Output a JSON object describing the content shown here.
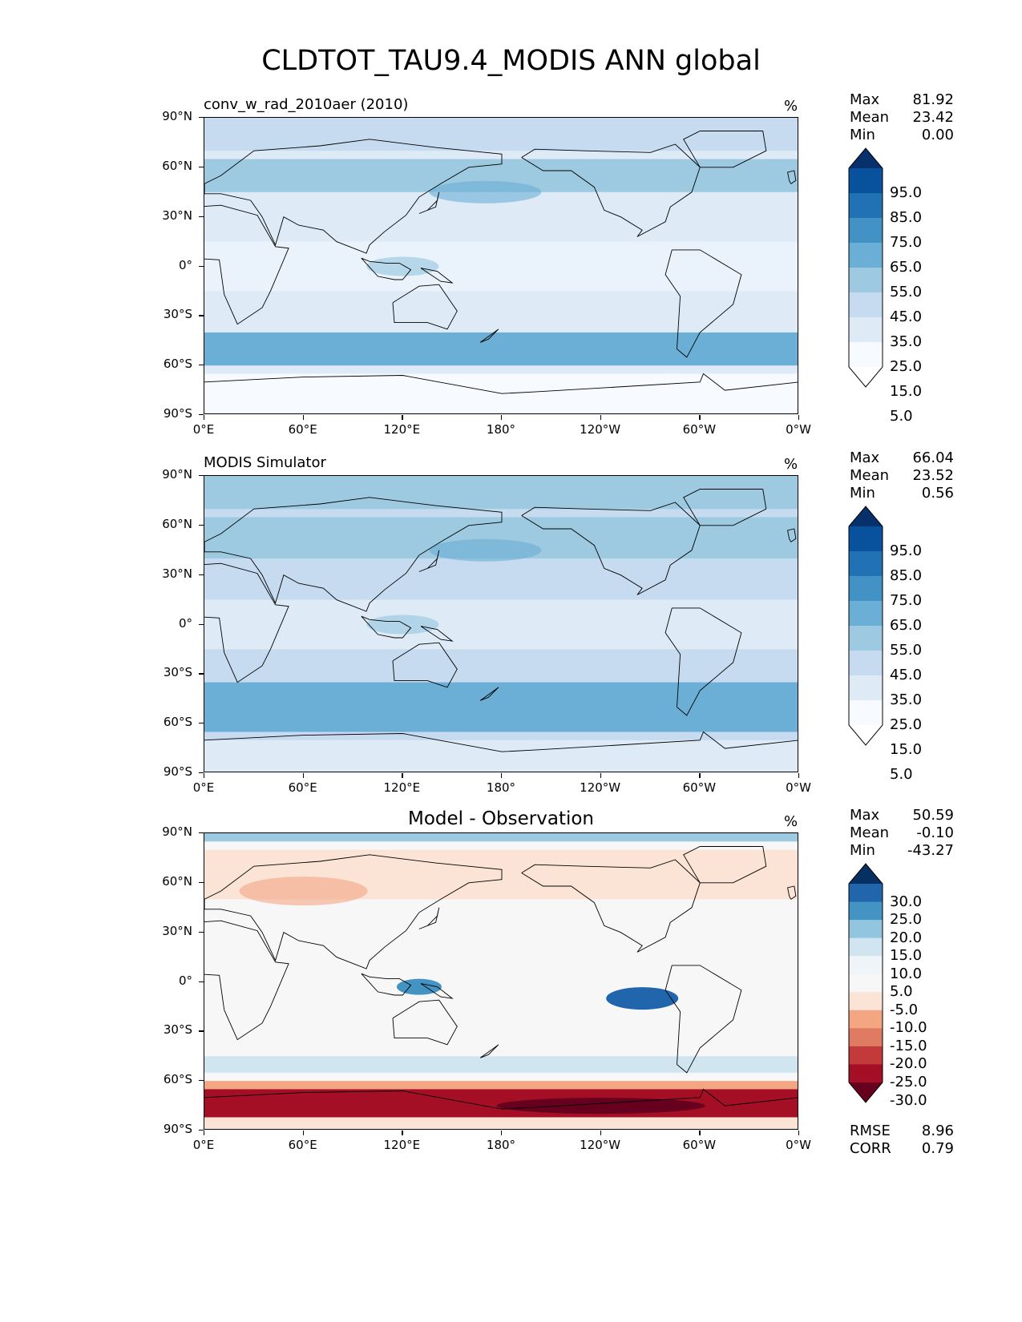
{
  "figure_title": "CLDTOT_TAU9.4_MODIS ANN global",
  "axes": {
    "y_ticks": [
      "90°N",
      "60°N",
      "30°N",
      "0°",
      "30°S",
      "60°S",
      "90°S"
    ],
    "x_ticks": [
      "0°E",
      "60°E",
      "120°E",
      "180°",
      "120°W",
      "60°W",
      "0°W"
    ]
  },
  "panels": [
    {
      "title": "conv_w_rad_2010aer (2010)",
      "units": "%",
      "stats": {
        "max_label": "Max",
        "max": "81.92",
        "mean_label": "Mean",
        "mean": "23.42",
        "min_label": "Min",
        "min": "0.00"
      },
      "colorbar": {
        "labels": [
          "95.0",
          "85.0",
          "75.0",
          "65.0",
          "55.0",
          "45.0",
          "35.0",
          "25.0",
          "15.0",
          "5.0"
        ],
        "colors": [
          "#08306b",
          "#08519c",
          "#2171b5",
          "#4292c6",
          "#6baed6",
          "#9ecae1",
          "#c6dbef",
          "#deebf7",
          "#f7fbff",
          "#ffffff"
        ]
      }
    },
    {
      "title": "MODIS Simulator",
      "units": "%",
      "stats": {
        "max_label": "Max",
        "max": "66.04",
        "mean_label": "Mean",
        "mean": "23.52",
        "min_label": "Min",
        "min": "0.56"
      },
      "colorbar": {
        "labels": [
          "95.0",
          "85.0",
          "75.0",
          "65.0",
          "55.0",
          "45.0",
          "35.0",
          "25.0",
          "15.0",
          "5.0"
        ],
        "colors": [
          "#08306b",
          "#08519c",
          "#2171b5",
          "#4292c6",
          "#6baed6",
          "#9ecae1",
          "#c6dbef",
          "#deebf7",
          "#f7fbff",
          "#ffffff"
        ]
      }
    },
    {
      "title": "Model - Observation",
      "units": "%",
      "stats": {
        "max_label": "Max",
        "max": "50.59",
        "mean_label": "Mean",
        "mean": "-0.10",
        "min_label": "Min",
        "min": "-43.27"
      },
      "colorbar": {
        "labels": [
          "30.0",
          "25.0",
          "20.0",
          "15.0",
          "10.0",
          "5.0",
          "-5.0",
          "-10.0",
          "-15.0",
          "-20.0",
          "-25.0",
          "-30.0"
        ],
        "colors": [
          "#053061",
          "#2166ac",
          "#4393c3",
          "#92c5de",
          "#d1e5f0",
          "#eef4f8",
          "#f7f7f7",
          "#fbe3d6",
          "#f4a582",
          "#e07b63",
          "#c23b3a",
          "#a50f26",
          "#67001f"
        ]
      },
      "bottom_stats": {
        "rmse_label": "RMSE",
        "rmse": "8.96",
        "corr_label": "CORR",
        "corr": "0.79"
      }
    }
  ],
  "colors": {
    "blue_light": "#deebf7",
    "blue_mid": "#9ecae1",
    "blue_dark": "#6baed6",
    "red_light": "#fbe3d6",
    "red_mid": "#f4a582",
    "red_dark": "#a50f26"
  }
}
